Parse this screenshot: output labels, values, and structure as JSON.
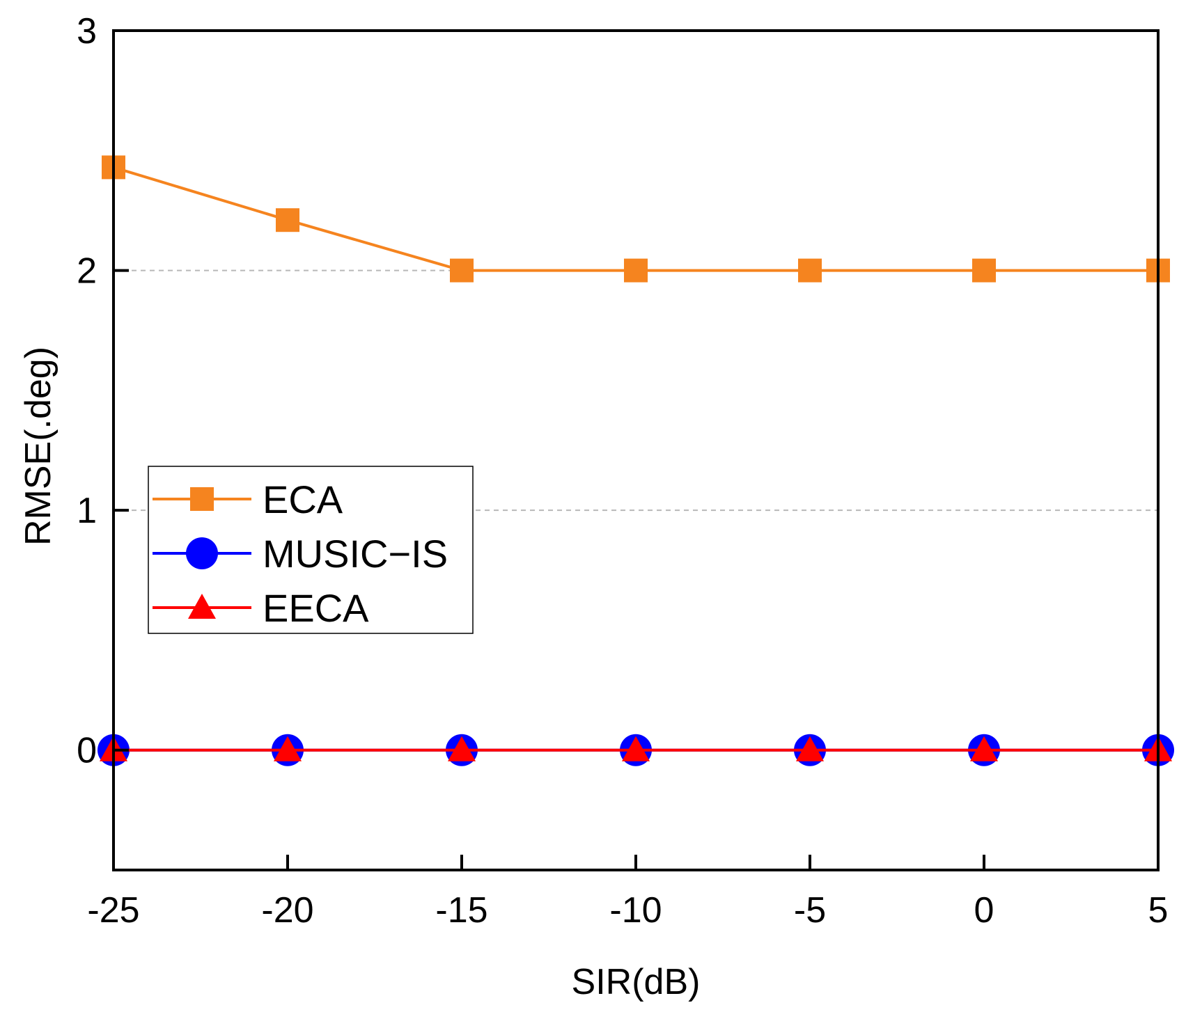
{
  "chart_data": {
    "type": "line",
    "title": "",
    "xlabel": "SIR(dB)",
    "ylabel": "RMSE(.deg)",
    "x": [
      -25,
      -20,
      -15,
      -10,
      -5,
      0,
      5
    ],
    "xticks": [
      "-25",
      "-20",
      "-15",
      "-10",
      "-5",
      "0",
      "5"
    ],
    "yticks": [
      "0",
      "1",
      "2",
      "3"
    ],
    "xlim": [
      -25,
      5
    ],
    "ylim": [
      -0.5,
      3
    ],
    "grid_y_dashed": [
      1,
      2
    ],
    "legend_position": "center-left",
    "series": [
      {
        "name": "ECA",
        "marker": "square",
        "color": "#f5841f",
        "values": [
          2.43,
          2.21,
          2.0,
          2.0,
          2.0,
          2.0,
          2.0
        ]
      },
      {
        "name": "MUSIC-IS",
        "marker": "circle",
        "color": "#0000ff",
        "values": [
          0,
          0,
          0,
          0,
          0,
          0,
          0
        ]
      },
      {
        "name": "EECA",
        "marker": "triangle",
        "color": "#ff0000",
        "values": [
          0,
          0,
          0,
          0,
          0,
          0,
          0
        ]
      }
    ],
    "legend_labels": [
      "ECA",
      "MUSIC−IS",
      "EECA"
    ]
  }
}
